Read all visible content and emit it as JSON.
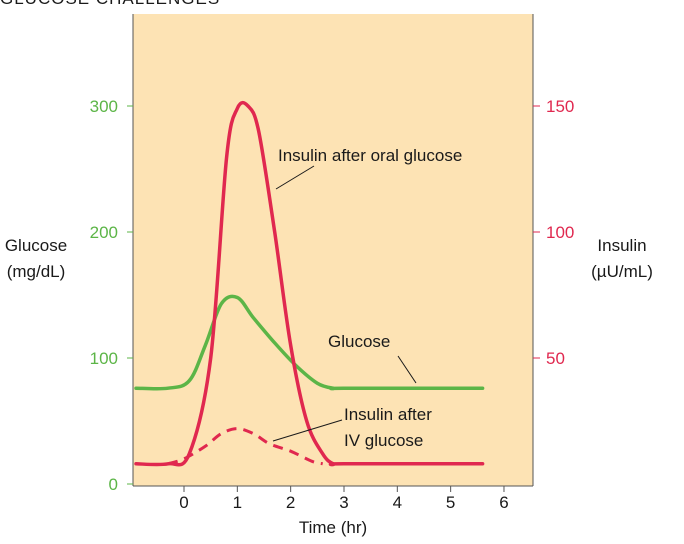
{
  "chart_data": {
    "type": "line",
    "title": "GLUCOSE CHALLENGES",
    "xlabel": "Time (hr)",
    "ylabel_left": [
      "Glucose",
      "(mg/dL)"
    ],
    "ylabel_right": [
      "Insulin",
      "(µU/mL)"
    ],
    "xlim": [
      -1,
      7
    ],
    "xticks": [
      0,
      1,
      2,
      3,
      4,
      5,
      6
    ],
    "y_left_lim": [
      0,
      350
    ],
    "y_left_ticks": [
      0,
      100,
      200,
      300
    ],
    "y_right_lim": [
      0,
      175
    ],
    "y_right_ticks": [
      50,
      100,
      150
    ],
    "background": "#fde3b4",
    "grid": false,
    "series": [
      {
        "name": "Insulin after oral glucose",
        "axis": "right",
        "style": "solid",
        "color": "#e0284f",
        "x": [
          -0.9,
          -0.3,
          0.1,
          0.5,
          0.8,
          1.0,
          1.2,
          1.4,
          1.7,
          2.0,
          2.3,
          2.6,
          2.8,
          3.0,
          5.6
        ],
        "y": [
          8,
          8,
          12,
          50,
          130,
          149,
          150,
          140,
          100,
          55,
          25,
          12,
          8,
          8,
          8
        ]
      },
      {
        "name": "Glucose",
        "axis": "left",
        "style": "solid",
        "color": "#5cb547",
        "x": [
          -0.9,
          -0.3,
          0.1,
          0.4,
          0.7,
          1.0,
          1.3,
          1.7,
          2.1,
          2.5,
          2.8,
          3.0,
          5.6
        ],
        "y": [
          76,
          76,
          82,
          110,
          143,
          148,
          132,
          112,
          94,
          80,
          76,
          76,
          76
        ]
      },
      {
        "name": "Insulin after IV glucose",
        "axis": "right",
        "style": "dashed",
        "color": "#e0284f",
        "x": [
          -0.3,
          0.0,
          0.4,
          0.7,
          1.0,
          1.3,
          1.6,
          2.0,
          2.4,
          2.6
        ],
        "y": [
          8,
          10,
          15,
          20,
          22,
          20,
          16,
          13,
          9,
          8
        ]
      }
    ],
    "annotations": {
      "oral": "Insulin after oral glucose",
      "glucose": "Glucose",
      "iv_line1": "Insulin after",
      "iv_line2": "IV glucose"
    }
  }
}
